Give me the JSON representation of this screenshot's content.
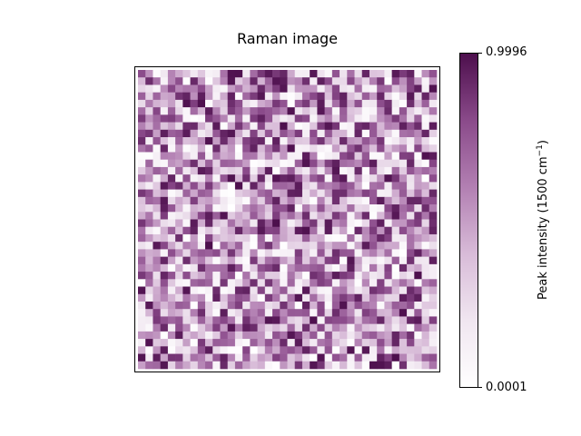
{
  "chart_data": {
    "type": "heatmap",
    "title": "Raman image",
    "rows": 40,
    "cols": 40,
    "colormap": [
      "#ffffff",
      "#f0e6f0",
      "#d8bbd8",
      "#b27fb2",
      "#8a4a8a",
      "#4d0f4d"
    ],
    "colorbar": {
      "label": "Peak intensity (1500 cm",
      "label_sup": "−1",
      "label_end": ")",
      "min": 0.0001,
      "max": 0.9996,
      "min_label": "0.0001",
      "max_label": "0.9996"
    },
    "seed": 1500,
    "xticks": [],
    "yticks": []
  }
}
